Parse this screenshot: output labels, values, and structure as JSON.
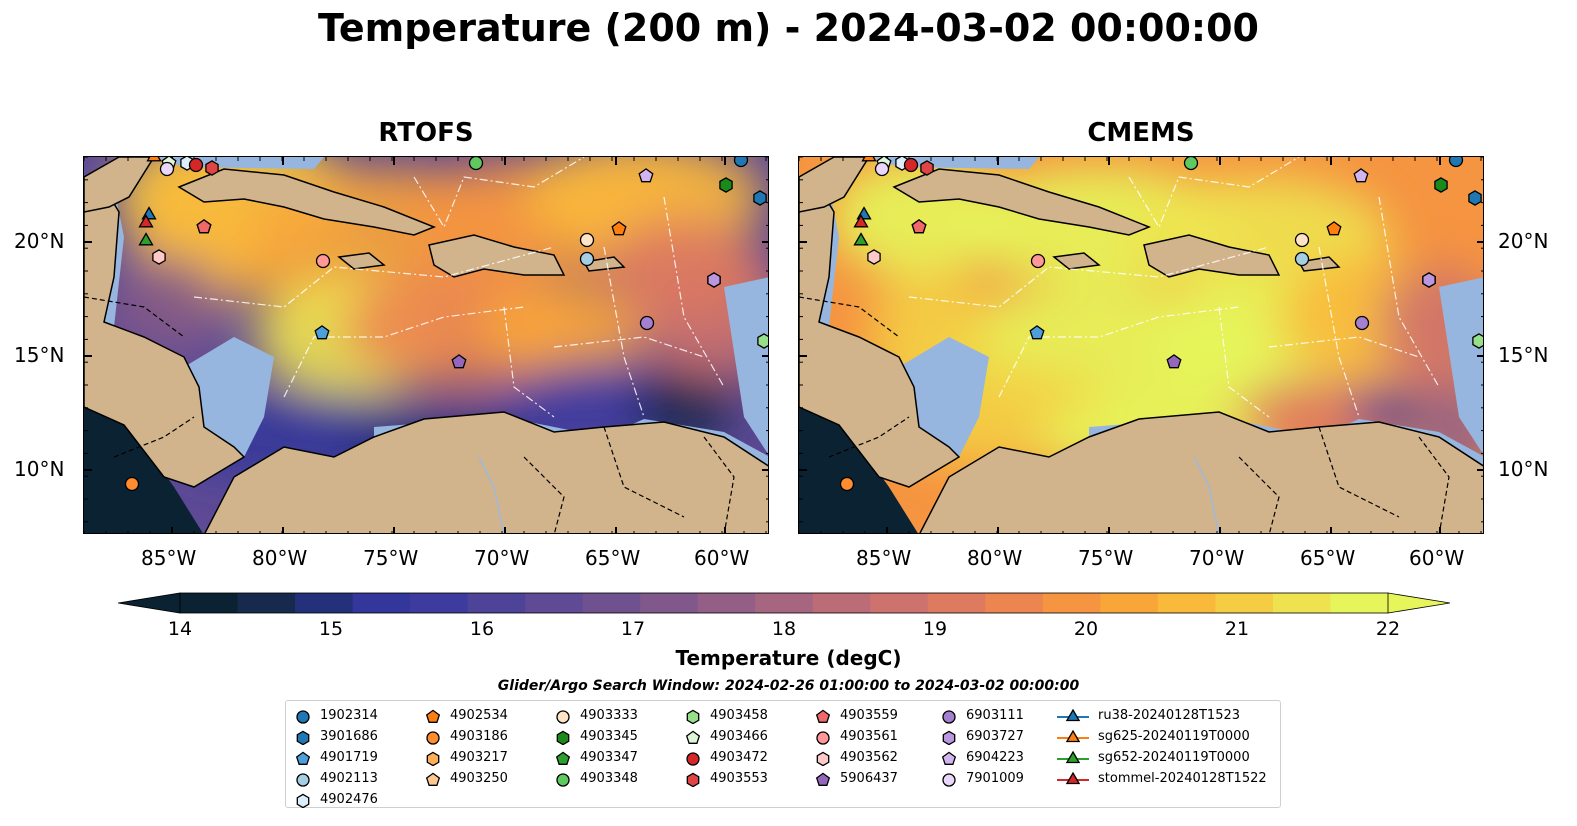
{
  "title": "Temperature (200 m) - 2024-03-02 00:00:00",
  "panels": [
    {
      "title": "RTOFS",
      "style": "cool"
    },
    {
      "title": "CMEMS",
      "style": "warm"
    }
  ],
  "axes": {
    "lon_labels": [
      "85°W",
      "80°W",
      "75°W",
      "70°W",
      "65°W",
      "60°W"
    ],
    "lat_labels": [
      "20°N",
      "15°N",
      "10°N"
    ]
  },
  "colorbar": {
    "min": 14,
    "max": 22,
    "ticks": [
      "14",
      "15",
      "16",
      "17",
      "18",
      "19",
      "20",
      "21",
      "22"
    ],
    "label": "Temperature (degC)",
    "colors": [
      "#0b2232",
      "#172a4d",
      "#24307a",
      "#33369a",
      "#3d3c9e",
      "#4d4399",
      "#5e4a95",
      "#6f5190",
      "#80588b",
      "#935f86",
      "#a7667f",
      "#bb6c77",
      "#ce726d",
      "#de7a60",
      "#ec8550",
      "#f59441",
      "#f9a639",
      "#f9b93a",
      "#f4cd42",
      "#eee34f",
      "#e6f65a"
    ]
  },
  "search_window": "Glider/Argo Search Window: 2024-02-26 01:00:00 to 2024-03-02 00:00:00",
  "legend": [
    [
      {
        "label": "1902314",
        "marker": "circle",
        "color": "#1f77b4"
      },
      {
        "label": "3901686",
        "marker": "hexagon",
        "color": "#1f77b4"
      },
      {
        "label": "4901719",
        "marker": "pentagon",
        "color": "#4c9fd8"
      },
      {
        "label": "4902113",
        "marker": "circle",
        "color": "#a6cee3"
      },
      {
        "label": "4902476",
        "marker": "hexagon",
        "color": "#ddeefa"
      }
    ],
    [
      {
        "label": "4902534",
        "marker": "pentagon",
        "color": "#ff7f0e"
      },
      {
        "label": "4903186",
        "marker": "circle",
        "color": "#ff8c2e"
      },
      {
        "label": "4903217",
        "marker": "hexagon",
        "color": "#ffae5a"
      },
      {
        "label": "4903250",
        "marker": "pentagon",
        "color": "#ffc891"
      }
    ],
    [
      {
        "label": "4903333",
        "marker": "circle",
        "color": "#ffe3c7"
      },
      {
        "label": "4903345",
        "marker": "hexagon",
        "color": "#1a8a1a"
      },
      {
        "label": "4903347",
        "marker": "pentagon",
        "color": "#2ca02c"
      },
      {
        "label": "4903348",
        "marker": "circle",
        "color": "#5fc95f"
      }
    ],
    [
      {
        "label": "4903458",
        "marker": "hexagon",
        "color": "#98df8a"
      },
      {
        "label": "4903466",
        "marker": "pentagon",
        "color": "#dff5d8"
      },
      {
        "label": "4903472",
        "marker": "circle",
        "color": "#d62728"
      },
      {
        "label": "4903553",
        "marker": "hexagon",
        "color": "#e04546"
      }
    ],
    [
      {
        "label": "4903559",
        "marker": "pentagon",
        "color": "#f0686a"
      },
      {
        "label": "4903561",
        "marker": "circle",
        "color": "#ff9896"
      },
      {
        "label": "4903562",
        "marker": "hexagon",
        "color": "#ffc9c8"
      },
      {
        "label": "5906437",
        "marker": "pentagon",
        "color": "#9467bd"
      }
    ],
    [
      {
        "label": "6903111",
        "marker": "circle",
        "color": "#a57fd0"
      },
      {
        "label": "6903727",
        "marker": "hexagon",
        "color": "#bb97e0"
      },
      {
        "label": "6904223",
        "marker": "pentagon",
        "color": "#d2b5ef"
      },
      {
        "label": "7901009",
        "marker": "circle",
        "color": "#ead6fb"
      }
    ],
    [
      {
        "label": "ru38-20240128T1523",
        "marker": "triangle",
        "color": "#1f77b4"
      },
      {
        "label": "sg625-20240119T0000",
        "marker": "triangle",
        "color": "#ff7f0e"
      },
      {
        "label": "sg652-20240119T0000",
        "marker": "triangle",
        "color": "#2ca02c"
      },
      {
        "label": "stommel-20240128T1522",
        "marker": "triangle",
        "color": "#d62728"
      }
    ]
  ]
}
